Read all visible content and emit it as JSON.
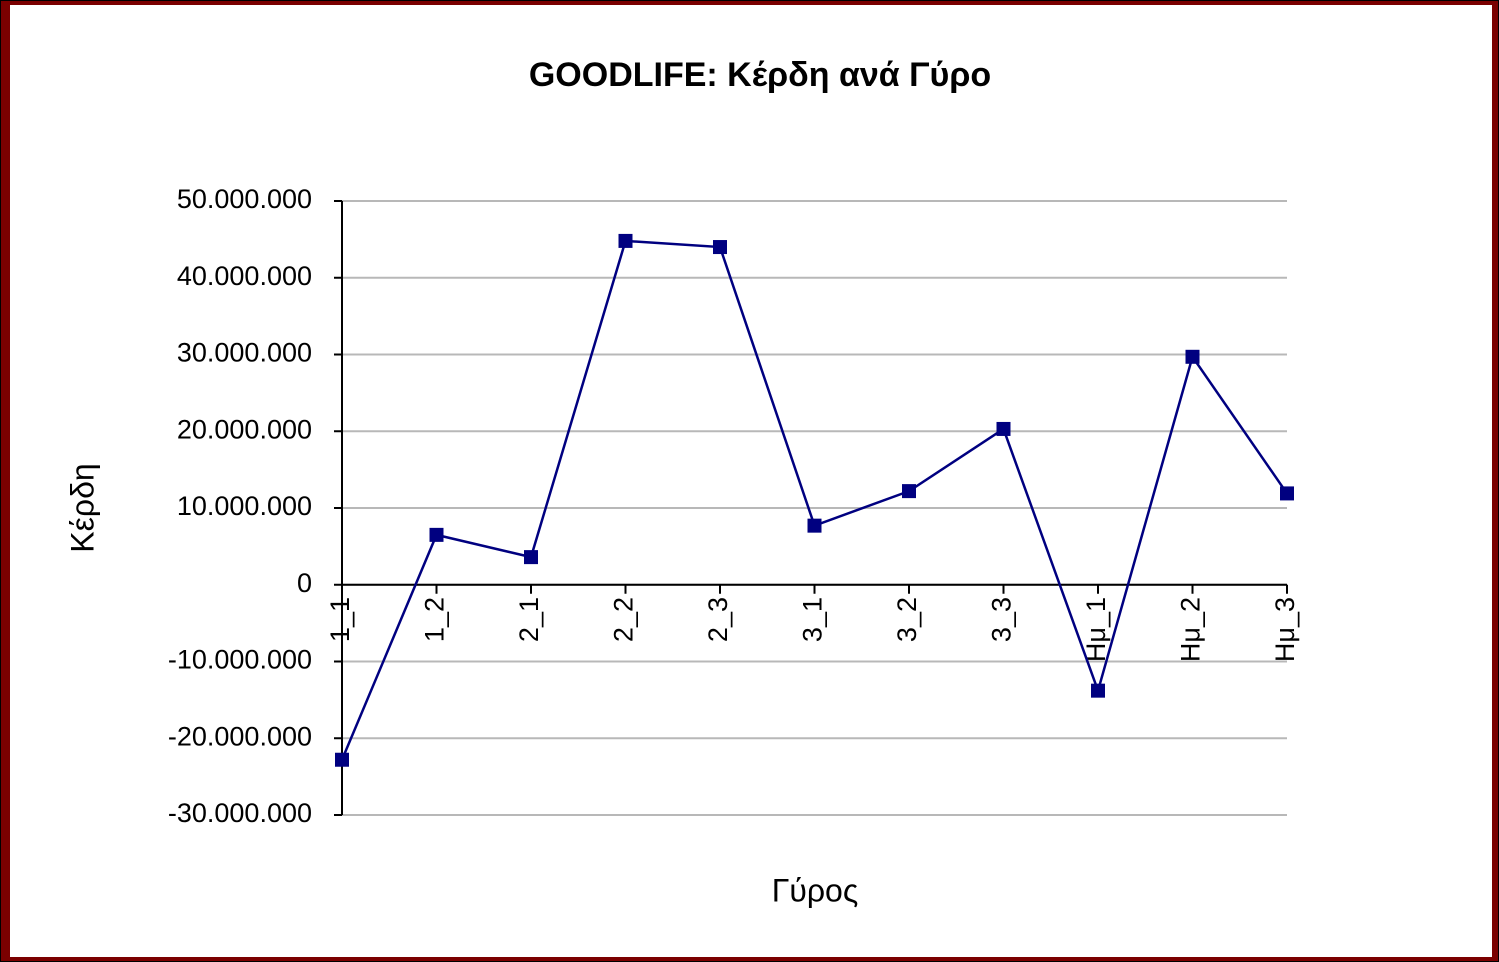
{
  "chart_data": {
    "type": "line",
    "title": "GOODLIFE: Κέρδη ανά Γύρο",
    "x_label": "Γύρος",
    "y_label": "Κέρδη",
    "categories": [
      "1_1",
      "1_2",
      "2_1",
      "2_2",
      "2_3",
      "3_1",
      "3_2",
      "3_3",
      "Hμ_1",
      "Hμ_2",
      "Hμ_3"
    ],
    "series": [
      {
        "name": "Κέρδη",
        "color": "#000080",
        "values": [
          -22800000,
          6500000,
          3600000,
          44800000,
          44000000,
          7700000,
          12200000,
          20300000,
          -13800000,
          29700000,
          11900000
        ]
      }
    ],
    "ylim": [
      -30000000,
      50000000
    ],
    "yticks": [
      {
        "value": -30000000,
        "label": "-30.000.000"
      },
      {
        "value": -20000000,
        "label": "-20.000.000"
      },
      {
        "value": -10000000,
        "label": "-10.000.000"
      },
      0,
      {
        "value": 10000000,
        "label": "10.000.000"
      },
      {
        "value": 20000000,
        "label": "20.000.000"
      },
      {
        "value": 30000000,
        "label": "30.000.000"
      },
      {
        "value": 40000000,
        "label": "40.000.000"
      },
      {
        "value": 50000000,
        "label": "50.000.000"
      }
    ],
    "grid": true
  }
}
